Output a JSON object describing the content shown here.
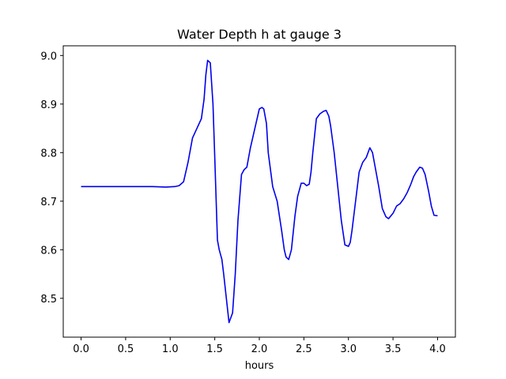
{
  "chart_data": {
    "type": "line",
    "title": "Water Depth h at gauge 3",
    "xlabel": "hours",
    "ylabel": "",
    "xlim": [
      -0.2,
      4.2
    ],
    "ylim": [
      8.42,
      9.02
    ],
    "xticks": [
      0.0,
      0.5,
      1.0,
      1.5,
      2.0,
      2.5,
      3.0,
      3.5,
      4.0
    ],
    "xtick_labels": [
      "0.0",
      "0.5",
      "1.0",
      "1.5",
      "2.0",
      "2.5",
      "3.0",
      "3.5",
      "4.0"
    ],
    "yticks": [
      8.5,
      8.6,
      8.7,
      8.8,
      8.9,
      9.0
    ],
    "ytick_labels": [
      "8.5",
      "8.6",
      "8.7",
      "8.8",
      "8.9",
      "9.0"
    ],
    "grid": false,
    "series": [
      {
        "color": "#0000ee",
        "x": [
          0.0,
          0.5,
          0.8,
          0.95,
          1.05,
          1.1,
          1.15,
          1.2,
          1.25,
          1.3,
          1.35,
          1.38,
          1.4,
          1.42,
          1.45,
          1.48,
          1.5,
          1.53,
          1.55,
          1.58,
          1.6,
          1.63,
          1.66,
          1.7,
          1.73,
          1.76,
          1.8,
          1.83,
          1.86,
          1.9,
          1.95,
          2.0,
          2.03,
          2.05,
          2.08,
          2.1,
          2.15,
          2.2,
          2.25,
          2.28,
          2.3,
          2.33,
          2.36,
          2.4,
          2.43,
          2.47,
          2.5,
          2.53,
          2.56,
          2.58,
          2.6,
          2.64,
          2.68,
          2.72,
          2.75,
          2.78,
          2.8,
          2.84,
          2.88,
          2.92,
          2.96,
          3.0,
          3.02,
          3.04,
          3.08,
          3.12,
          3.16,
          3.2,
          3.24,
          3.27,
          3.3,
          3.34,
          3.38,
          3.42,
          3.45,
          3.5,
          3.54,
          3.58,
          3.62,
          3.66,
          3.7,
          3.73,
          3.76,
          3.8,
          3.83,
          3.86,
          3.9,
          3.93,
          3.96,
          4.0
        ],
        "y": [
          8.73,
          8.73,
          8.73,
          8.729,
          8.73,
          8.732,
          8.74,
          8.78,
          8.83,
          8.85,
          8.87,
          8.91,
          8.96,
          8.99,
          8.985,
          8.9,
          8.79,
          8.62,
          8.6,
          8.58,
          8.55,
          8.5,
          8.45,
          8.47,
          8.55,
          8.66,
          8.755,
          8.765,
          8.77,
          8.81,
          8.85,
          8.89,
          8.893,
          8.89,
          8.86,
          8.8,
          8.73,
          8.7,
          8.64,
          8.6,
          8.585,
          8.58,
          8.6,
          8.67,
          8.71,
          8.737,
          8.737,
          8.732,
          8.735,
          8.76,
          8.8,
          8.87,
          8.88,
          8.885,
          8.887,
          8.875,
          8.855,
          8.8,
          8.73,
          8.66,
          8.61,
          8.607,
          8.615,
          8.64,
          8.7,
          8.76,
          8.78,
          8.79,
          8.81,
          8.8,
          8.77,
          8.73,
          8.685,
          8.668,
          8.664,
          8.675,
          8.69,
          8.695,
          8.705,
          8.718,
          8.735,
          8.75,
          8.76,
          8.77,
          8.768,
          8.755,
          8.72,
          8.69,
          8.671,
          8.67
        ]
      }
    ]
  }
}
